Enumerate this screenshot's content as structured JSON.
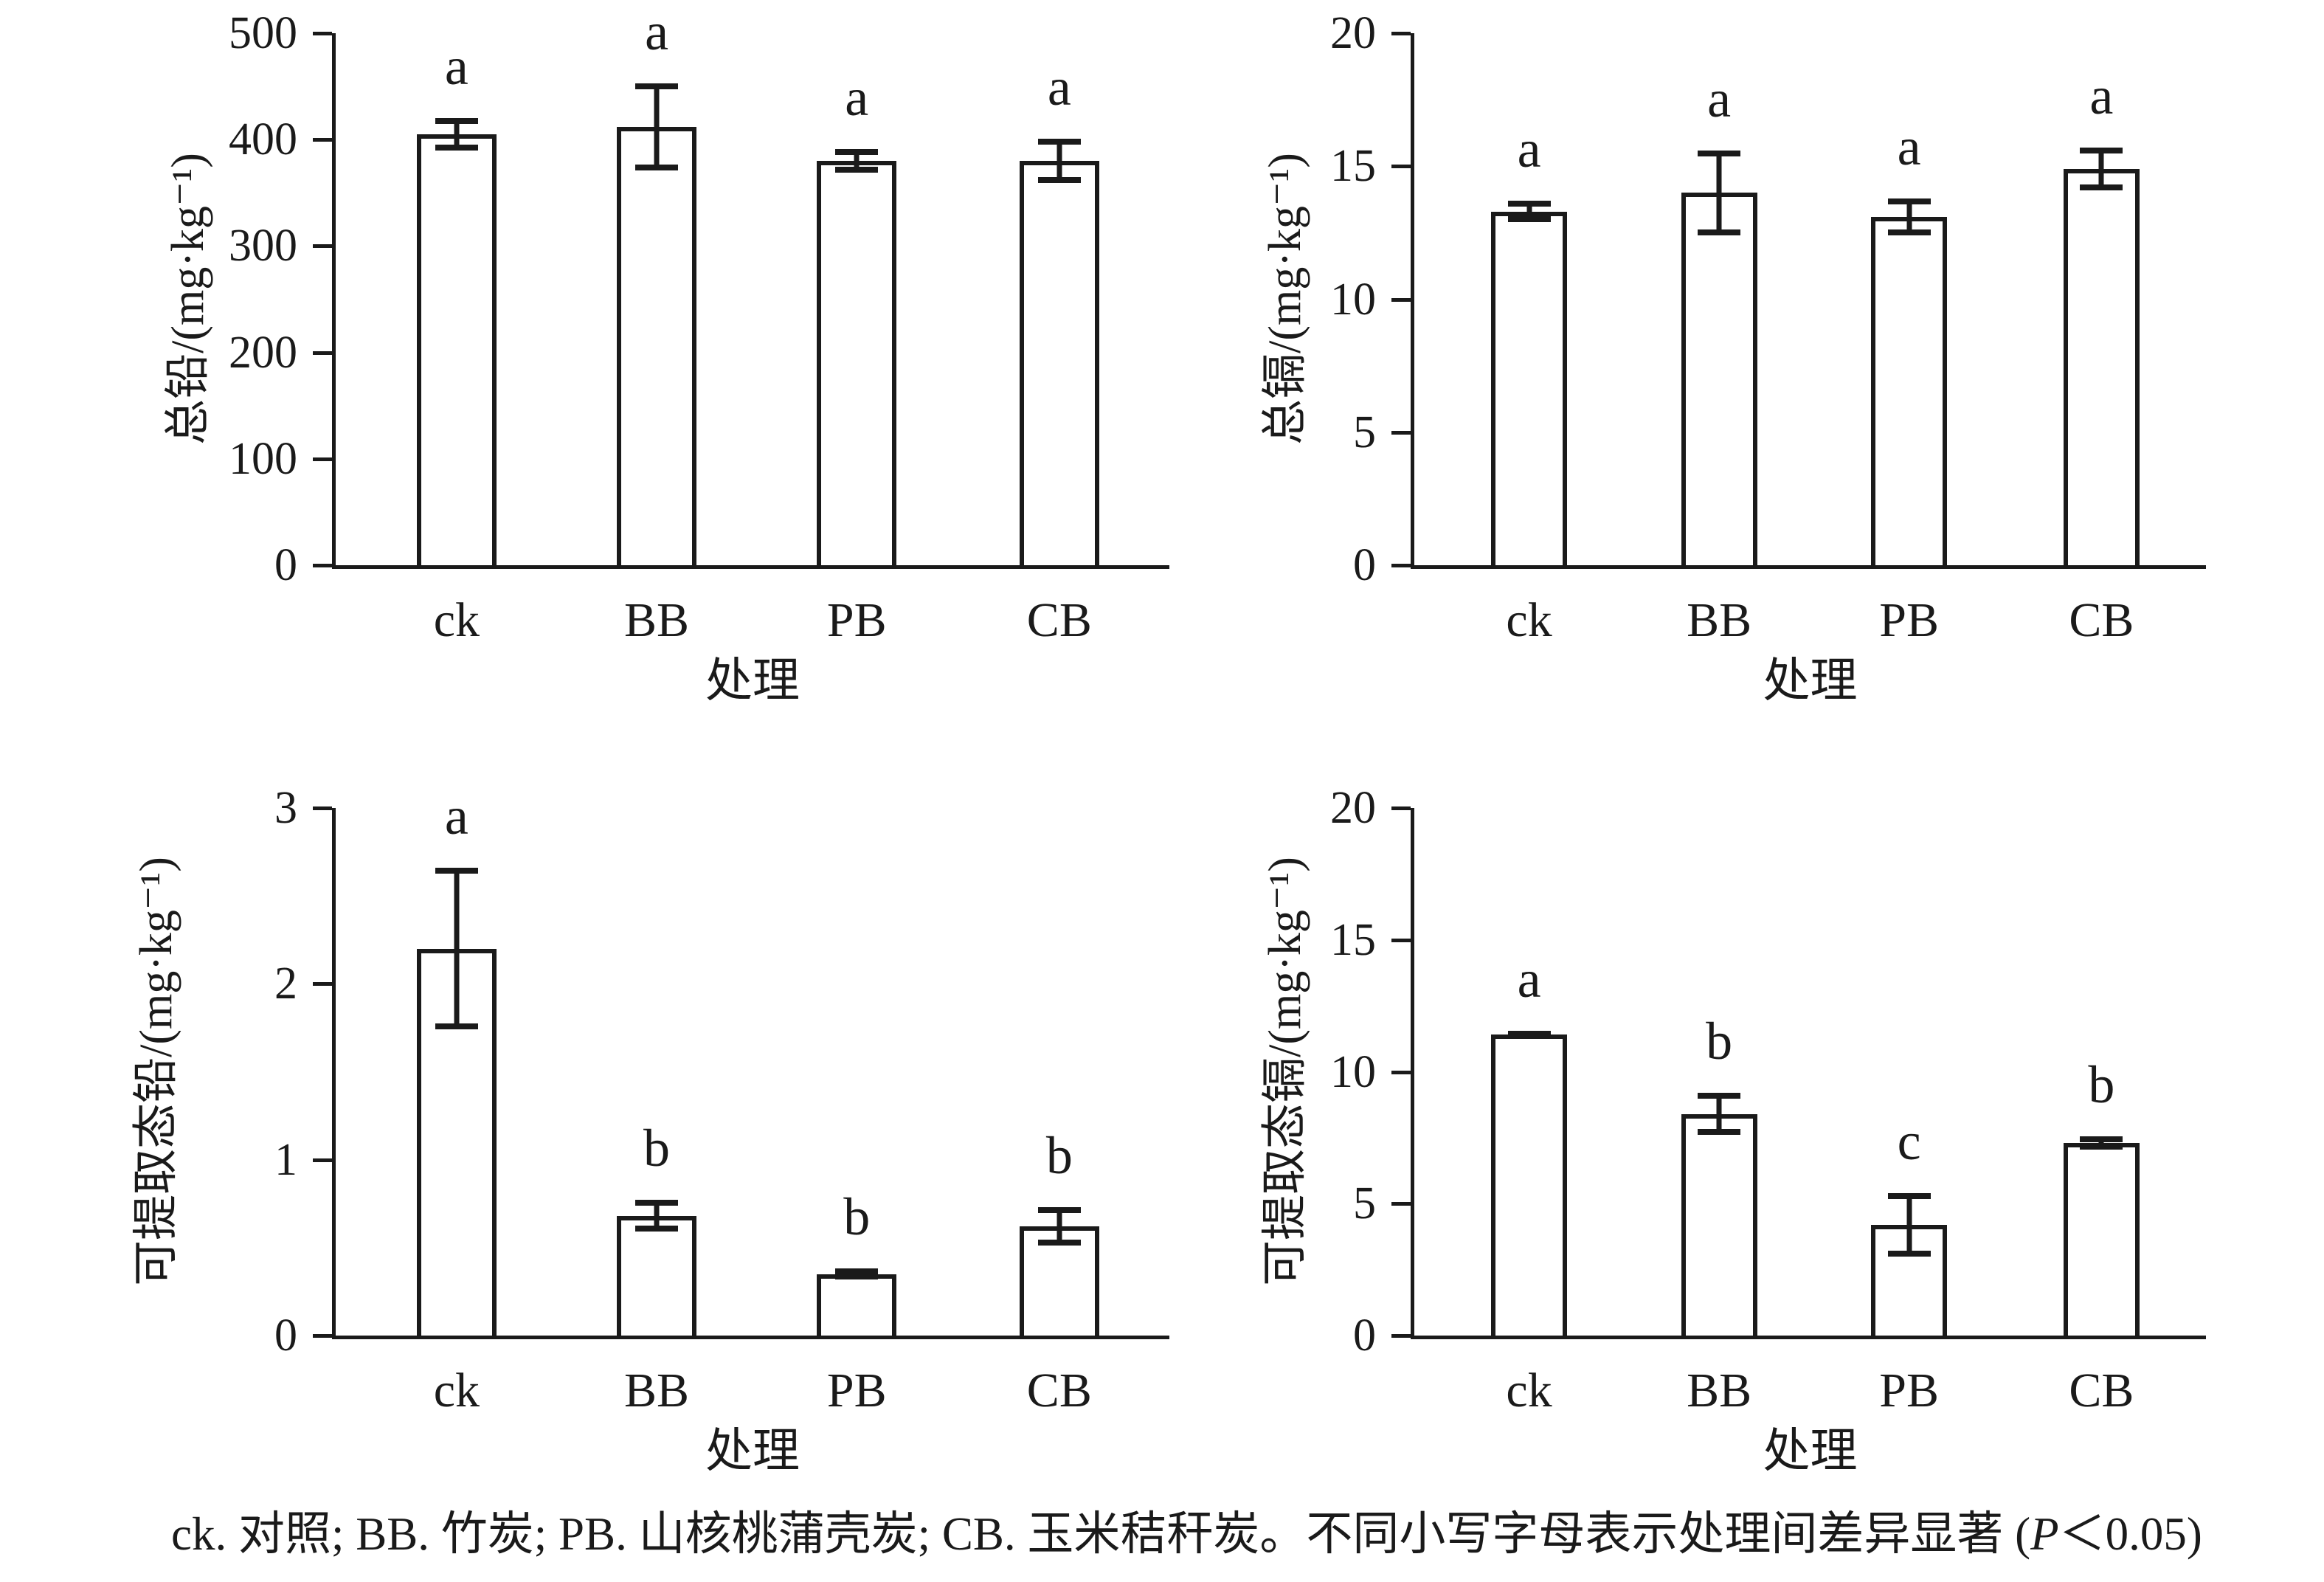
{
  "figure": {
    "background_color": "#ffffff",
    "ink_color": "#1a1a1a"
  },
  "caption": {
    "before_p": "ck. 对照; BB. 竹炭; PB. 山核桃蒲壳炭; CB. 玉米秸秆炭。不同小写字母表示处理间差异显著 (",
    "p": "P",
    "after_p": "＜0.05)"
  },
  "chart_data": [
    {
      "id": "total-lead",
      "type": "bar",
      "title": "",
      "ylabel": "总铅/(mg·kg⁻¹)",
      "xlabel": "处理",
      "categories": [
        "ck",
        "BB",
        "PB",
        "CB"
      ],
      "values": [
        405,
        412,
        380,
        380
      ],
      "errors": [
        15,
        41,
        11,
        21
      ],
      "sig_letters": [
        "a",
        "a",
        "a",
        "a"
      ],
      "ylim": [
        0,
        500
      ],
      "yticks": [
        0,
        100,
        200,
        300,
        400,
        500
      ],
      "grid": false,
      "legend": "none",
      "bar_fill": "#ffffff",
      "bar_edge": "#1a1a1a"
    },
    {
      "id": "total-cadmium",
      "type": "bar",
      "title": "",
      "ylabel": "总镉/(mg·kg⁻¹)",
      "xlabel": "处理",
      "categories": [
        "ck",
        "BB",
        "PB",
        "CB"
      ],
      "values": [
        13.3,
        14.0,
        13.1,
        14.9
      ],
      "errors": [
        0.4,
        1.6,
        0.7,
        0.8
      ],
      "sig_letters": [
        "a",
        "a",
        "a",
        "a"
      ],
      "ylim": [
        0,
        20
      ],
      "yticks": [
        0,
        5,
        10,
        15,
        20
      ],
      "grid": false,
      "legend": "none",
      "bar_fill": "#ffffff",
      "bar_edge": "#1a1a1a"
    },
    {
      "id": "extractable-lead",
      "type": "bar",
      "title": "",
      "ylabel": "可提取态铅/(mg·kg⁻¹)",
      "xlabel": "处理",
      "categories": [
        "ck",
        "BB",
        "PB",
        "CB"
      ],
      "values": [
        2.2,
        0.68,
        0.35,
        0.62
      ],
      "errors": [
        0.46,
        0.09,
        0.03,
        0.11
      ],
      "sig_letters": [
        "a",
        "b",
        "b",
        "b"
      ],
      "ylim": [
        0,
        3
      ],
      "yticks": [
        0,
        1,
        2,
        3
      ],
      "grid": false,
      "legend": "none",
      "bar_fill": "#ffffff",
      "bar_edge": "#1a1a1a"
    },
    {
      "id": "extractable-cadmium",
      "type": "bar",
      "title": "",
      "ylabel": "可提取态镉/(mg·kg⁻¹)",
      "xlabel": "处理",
      "categories": [
        "ck",
        "BB",
        "PB",
        "CB"
      ],
      "values": [
        11.4,
        8.4,
        4.2,
        7.3
      ],
      "errors": [
        0.15,
        0.8,
        1.2,
        0.25
      ],
      "sig_letters": [
        "a",
        "b",
        "c",
        "b"
      ],
      "ylim": [
        0,
        20
      ],
      "yticks": [
        0,
        5,
        10,
        15,
        20
      ],
      "grid": false,
      "legend": "none",
      "bar_fill": "#ffffff",
      "bar_edge": "#1a1a1a"
    }
  ]
}
